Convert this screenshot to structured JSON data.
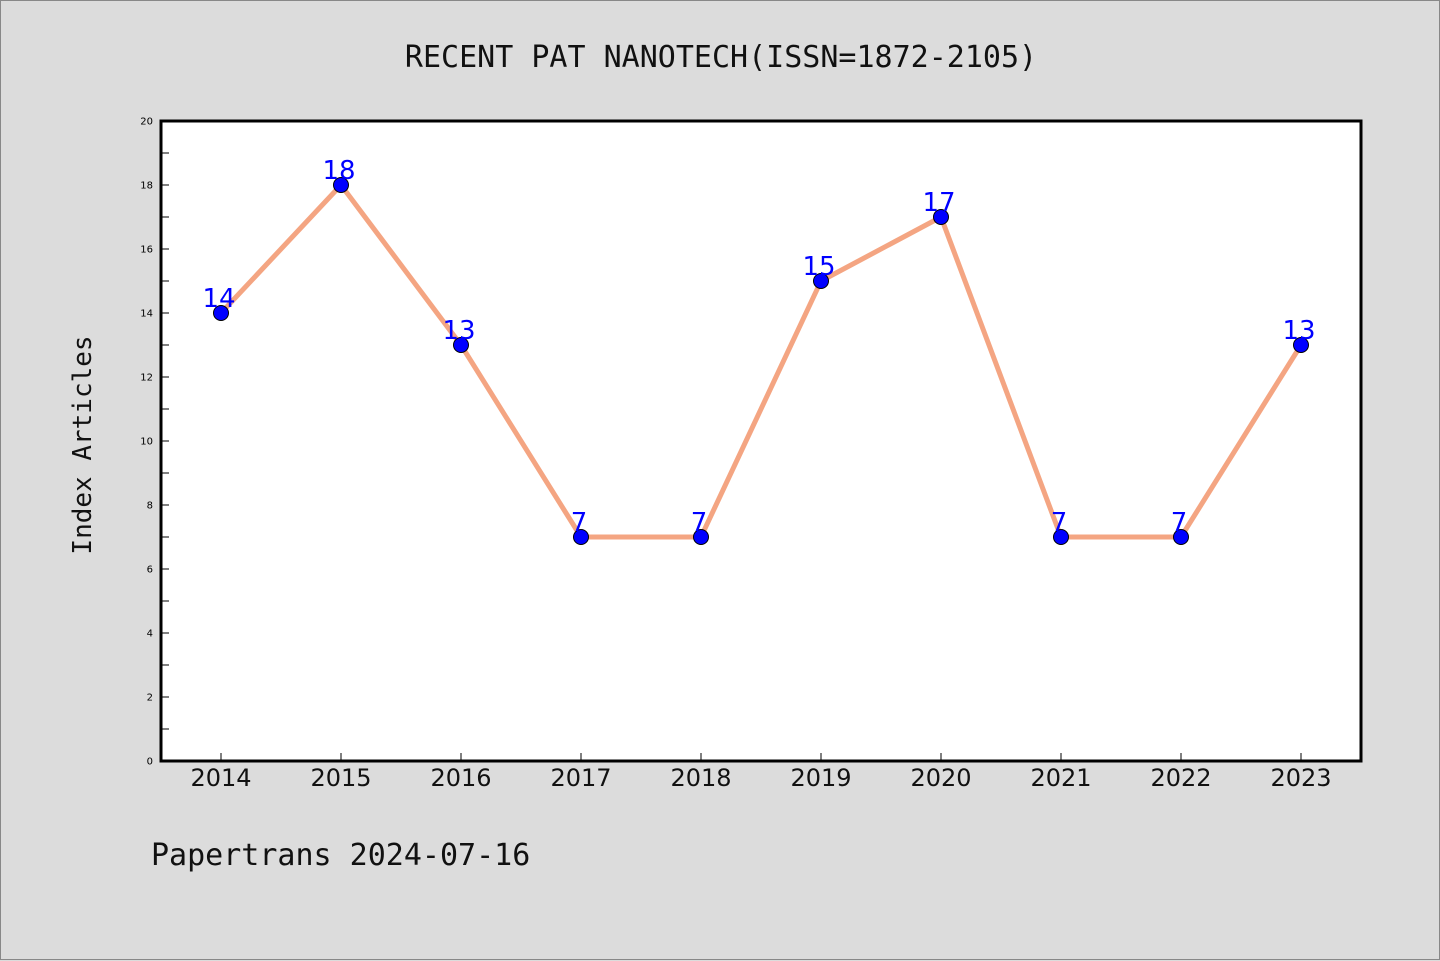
{
  "chart_data": {
    "type": "line",
    "title": "RECENT PAT NANOTECH(ISSN=1872-2105)",
    "xlabel": "",
    "ylabel": "Index Articles",
    "categories": [
      "2014",
      "2015",
      "2016",
      "2017",
      "2018",
      "2019",
      "2020",
      "2021",
      "2022",
      "2023"
    ],
    "series": [
      {
        "values": [
          14,
          18,
          13,
          7,
          7,
          15,
          17,
          7,
          7,
          13
        ]
      }
    ],
    "ylim": [
      0,
      20
    ],
    "yticks": [
      0,
      2,
      4,
      6,
      8,
      10,
      12,
      14,
      16,
      18,
      20
    ],
    "grid": false,
    "line_color": "#f4a582",
    "marker_color": "#0000ff",
    "label_color": "#0000ff"
  },
  "footer": {
    "source": "Papertrans 2024-07-16"
  }
}
